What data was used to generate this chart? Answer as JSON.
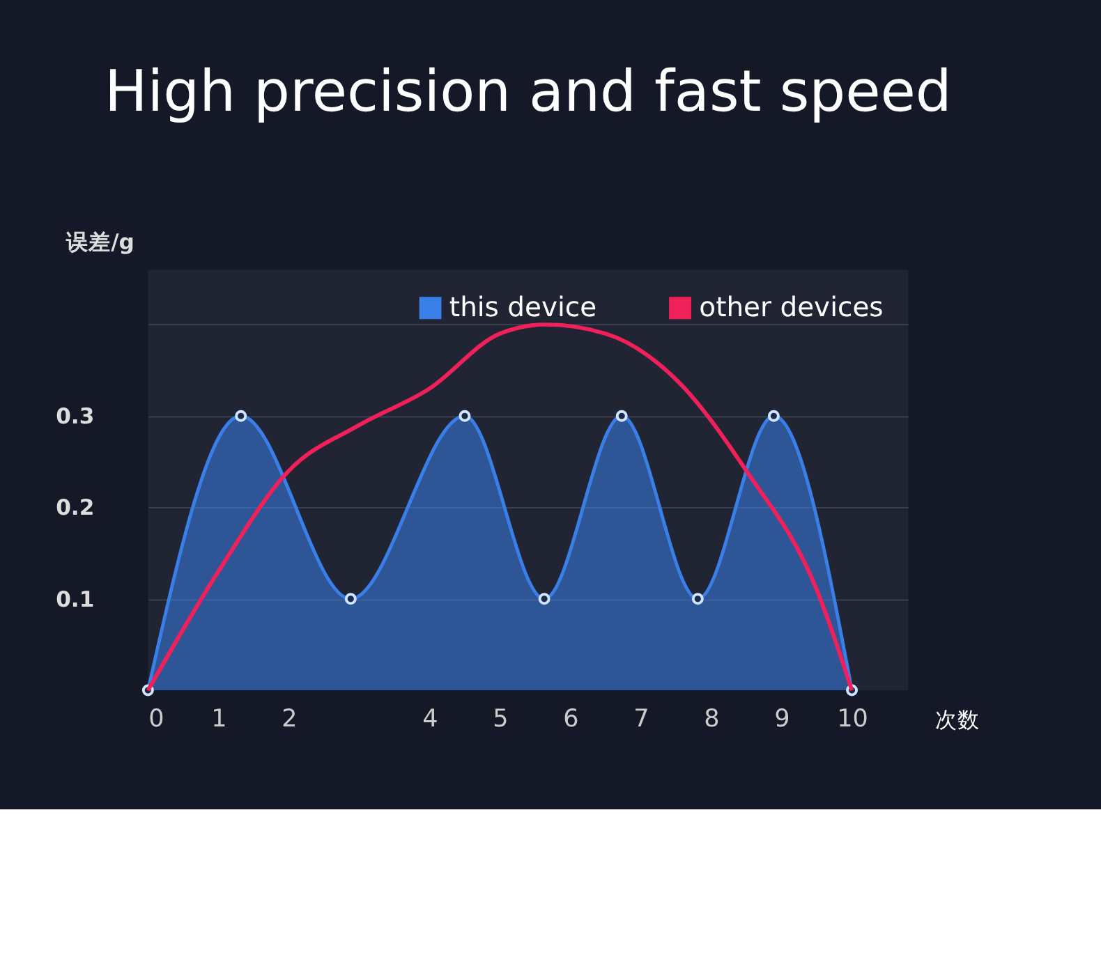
{
  "chart_data": {
    "type": "line",
    "title": "High precision and fast speed",
    "xlabel": "次数",
    "ylabel": "误差/g",
    "xlim": [
      0,
      10.8
    ],
    "ylim": [
      0,
      0.46
    ],
    "xticks": [
      0,
      1,
      2,
      4,
      5,
      6,
      7,
      8,
      9,
      10
    ],
    "yticks": [
      0.1,
      0.2,
      0.3,
      {
        "value": 0.4,
        "label": null
      }
    ],
    "grid": "y",
    "legend": "top right",
    "series": [
      {
        "name": "this device",
        "type": "area",
        "color": "#3a7ee8",
        "marker": "circle",
        "x": [
          0,
          1.32,
          2.88,
          4.5,
          5.63,
          6.73,
          7.81,
          8.89,
          10
        ],
        "values": [
          0,
          0.3,
          0.1,
          0.3,
          0.1,
          0.3,
          0.1,
          0.3,
          0
        ]
      },
      {
        "name": "other devices",
        "color": "#f0205a",
        "x": [
          0,
          1,
          2,
          3,
          4,
          5,
          5.65,
          6.5,
          7.5,
          8.5,
          9.5,
          10
        ],
        "values": [
          0,
          0.13,
          0.24,
          0.29,
          0.33,
          0.39,
          0.4,
          0.39,
          0.34,
          0.24,
          0.11,
          0
        ]
      }
    ]
  }
}
